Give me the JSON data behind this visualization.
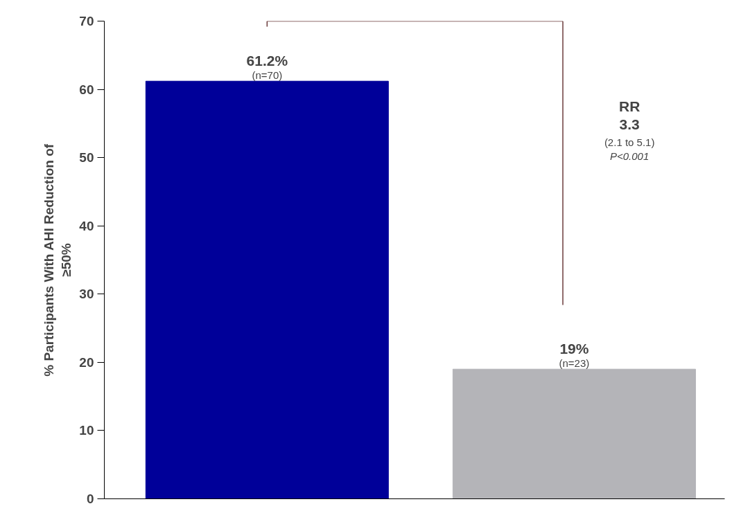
{
  "chart_data": {
    "type": "bar",
    "ylabel": "% Participants With AHI Reduction of\n≥50%",
    "categories": [
      null,
      null
    ],
    "values": [
      61.2,
      19
    ],
    "colors": [
      "#000099",
      "#b4b4b8"
    ],
    "value_labels": [
      "61.2%\n(n=70)",
      "19%\n(n=23)"
    ],
    "annotations": [
      "RR",
      "3.3",
      "(2.1 to 5.1)",
      "P<0.001"
    ],
    "ylim": [
      0,
      70
    ],
    "yticks": [
      0,
      10,
      20,
      30,
      40,
      50,
      60,
      70
    ],
    "grid": false
  }
}
